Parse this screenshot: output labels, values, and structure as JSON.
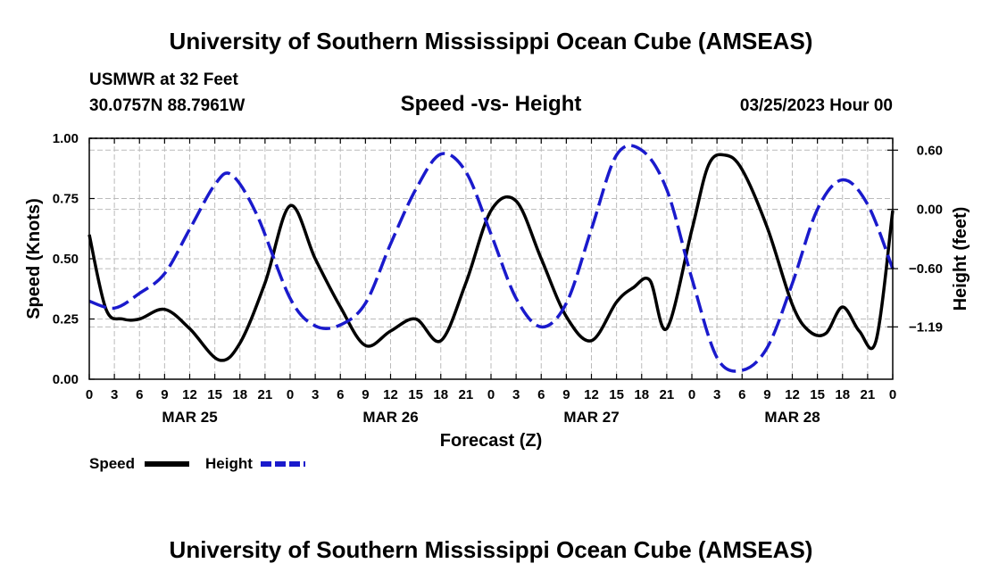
{
  "header": {
    "title": "University of Southern Mississippi Ocean Cube (AMSEAS)",
    "station": "USMWR at 32 Feet",
    "location": "30.0757N  88.7961W",
    "date": "03/25/2023 Hour 00",
    "footer_title": "University of Southern Mississippi Ocean Cube (AMSEAS)"
  },
  "colors": {
    "speed": "#000000",
    "height": "#1a1acc",
    "grid": "#bbbbbb"
  },
  "chart_data": {
    "type": "line",
    "title": "Speed -vs- Height",
    "xlabel": "Forecast (Z)",
    "ylabel_left": "Speed (Knots)",
    "ylabel_right": "Height (feet)",
    "x_range_hours": [
      0,
      96
    ],
    "xticks_hours": [
      0,
      3,
      6,
      9,
      12,
      15,
      18,
      21,
      24,
      27,
      30,
      33,
      36,
      39,
      42,
      45,
      48,
      51,
      54,
      57,
      60,
      63,
      66,
      69,
      72,
      75,
      78,
      81,
      84,
      87,
      90,
      93,
      96
    ],
    "xtick_labels": [
      "0",
      "3",
      "6",
      "9",
      "12",
      "15",
      "18",
      "21",
      "0",
      "3",
      "6",
      "9",
      "12",
      "15",
      "18",
      "21",
      "0",
      "3",
      "6",
      "9",
      "12",
      "15",
      "18",
      "21",
      "0",
      "3",
      "6",
      "9",
      "12",
      "15",
      "18",
      "21",
      "0"
    ],
    "day_labels": [
      {
        "hour": 12,
        "label": "MAR 25"
      },
      {
        "hour": 36,
        "label": "MAR 26"
      },
      {
        "hour": 60,
        "label": "MAR 27"
      },
      {
        "hour": 84,
        "label": "MAR 28"
      }
    ],
    "ylim_left": [
      0,
      1
    ],
    "yticks_left": [
      0,
      0.25,
      0.5,
      0.75,
      1.0
    ],
    "ytick_labels_left": [
      "0.00",
      "0.25",
      "0.50",
      "0.75",
      "1.00"
    ],
    "ylim_right": [
      -1.72,
      0.72
    ],
    "yticks_right": [
      -1.19,
      -0.6,
      0.0,
      0.6
    ],
    "ytick_labels_right": [
      "−1.19",
      "−0.60",
      "0.00",
      "0.60"
    ],
    "series": [
      {
        "name": "Speed",
        "axis": "left",
        "style": "solid",
        "x": [
          0,
          2,
          4,
          6,
          9,
          12,
          15.5,
          18,
          21,
          24,
          27,
          30,
          33,
          36,
          39,
          42,
          45,
          48,
          51,
          54,
          57,
          60,
          63,
          65,
          67,
          69,
          72,
          74,
          76,
          78,
          81,
          84,
          86,
          88,
          90,
          92,
          94,
          96
        ],
        "y": [
          0.6,
          0.29,
          0.25,
          0.25,
          0.29,
          0.21,
          0.08,
          0.15,
          0.4,
          0.72,
          0.5,
          0.3,
          0.14,
          0.2,
          0.25,
          0.16,
          0.4,
          0.7,
          0.74,
          0.5,
          0.26,
          0.16,
          0.32,
          0.38,
          0.41,
          0.21,
          0.62,
          0.89,
          0.93,
          0.87,
          0.63,
          0.31,
          0.2,
          0.19,
          0.3,
          0.2,
          0.16,
          0.7
        ]
      },
      {
        "name": "Height",
        "axis": "right",
        "style": "dashed",
        "x": [
          0,
          3,
          6,
          9,
          12,
          15,
          17,
          20,
          24,
          27,
          30,
          33,
          36,
          39,
          42,
          45,
          48,
          51,
          54,
          57,
          60,
          63,
          66,
          69,
          72,
          75,
          78,
          81,
          84,
          87,
          90,
          93,
          96
        ],
        "y": [
          -0.93,
          -1.0,
          -0.85,
          -0.65,
          -0.2,
          0.25,
          0.35,
          -0.05,
          -0.9,
          -1.18,
          -1.17,
          -0.95,
          -0.35,
          0.2,
          0.56,
          0.38,
          -0.25,
          -0.9,
          -1.19,
          -0.95,
          -0.2,
          0.55,
          0.6,
          0.2,
          -0.7,
          -1.5,
          -1.63,
          -1.4,
          -0.75,
          0.0,
          0.3,
          0.05,
          -0.6
        ]
      }
    ],
    "legend": [
      {
        "label": "Speed",
        "series": "Speed"
      },
      {
        "label": "Height",
        "series": "Height"
      }
    ]
  }
}
